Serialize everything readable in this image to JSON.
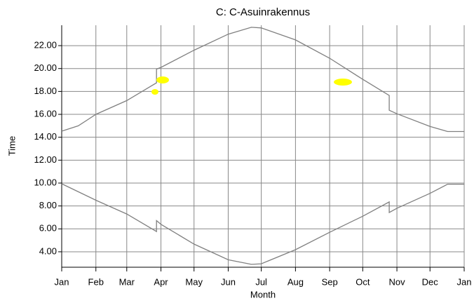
{
  "chart_data": {
    "type": "line",
    "title": "C: C-Asuinrakennus",
    "x_label": "Month",
    "y_label": "Time",
    "xlim": [
      0,
      365
    ],
    "xticks": [
      {
        "value": 0,
        "label": "Jan"
      },
      {
        "value": 31,
        "label": "Feb"
      },
      {
        "value": 59,
        "label": "Mar"
      },
      {
        "value": 90,
        "label": "Apr"
      },
      {
        "value": 120,
        "label": "May"
      },
      {
        "value": 151,
        "label": "Jun"
      },
      {
        "value": 181,
        "label": "Jul"
      },
      {
        "value": 212,
        "label": "Aug"
      },
      {
        "value": 243,
        "label": "Sep"
      },
      {
        "value": 273,
        "label": "Oct"
      },
      {
        "value": 304,
        "label": "Nov"
      },
      {
        "value": 334,
        "label": "Dec"
      },
      {
        "value": 365,
        "label": "Jan"
      }
    ],
    "ylim": [
      2.65,
      23.78
    ],
    "yticks": [
      {
        "value": 4,
        "label": "4.00"
      },
      {
        "value": 6,
        "label": "6.00"
      },
      {
        "value": 8,
        "label": "8.00"
      },
      {
        "value": 10,
        "label": "10.00"
      },
      {
        "value": 12,
        "label": "12.00"
      },
      {
        "value": 14,
        "label": "14.00"
      },
      {
        "value": 16,
        "label": "16.00"
      },
      {
        "value": 18,
        "label": "18.00"
      },
      {
        "value": 20,
        "label": "20.00"
      },
      {
        "value": 22,
        "label": "22.00"
      }
    ],
    "grid": true,
    "series": [
      {
        "color": "#808080",
        "x": [
          0,
          15,
          31,
          59,
          86,
          86,
          90,
          120,
          151,
          172,
          181,
          212,
          243,
          273,
          297,
          297,
          304,
          334,
          350,
          365
        ],
        "values": [
          14.53,
          15.0,
          16.0,
          17.2,
          18.75,
          19.95,
          20.1,
          21.6,
          23.0,
          23.6,
          23.55,
          22.5,
          20.9,
          19.06,
          17.65,
          16.36,
          16.05,
          14.95,
          14.5,
          14.5
        ]
      },
      {
        "color": "#808080",
        "x": [
          0,
          31,
          59,
          86,
          86,
          90,
          120,
          151,
          172,
          181,
          212,
          243,
          273,
          297,
          297,
          304,
          334,
          350,
          365
        ],
        "values": [
          9.94,
          8.5,
          7.3,
          5.77,
          6.72,
          6.4,
          4.67,
          3.3,
          2.9,
          2.95,
          4.18,
          5.7,
          7.1,
          8.35,
          7.43,
          7.8,
          9.1,
          9.9,
          9.9
        ]
      }
    ]
  }
}
